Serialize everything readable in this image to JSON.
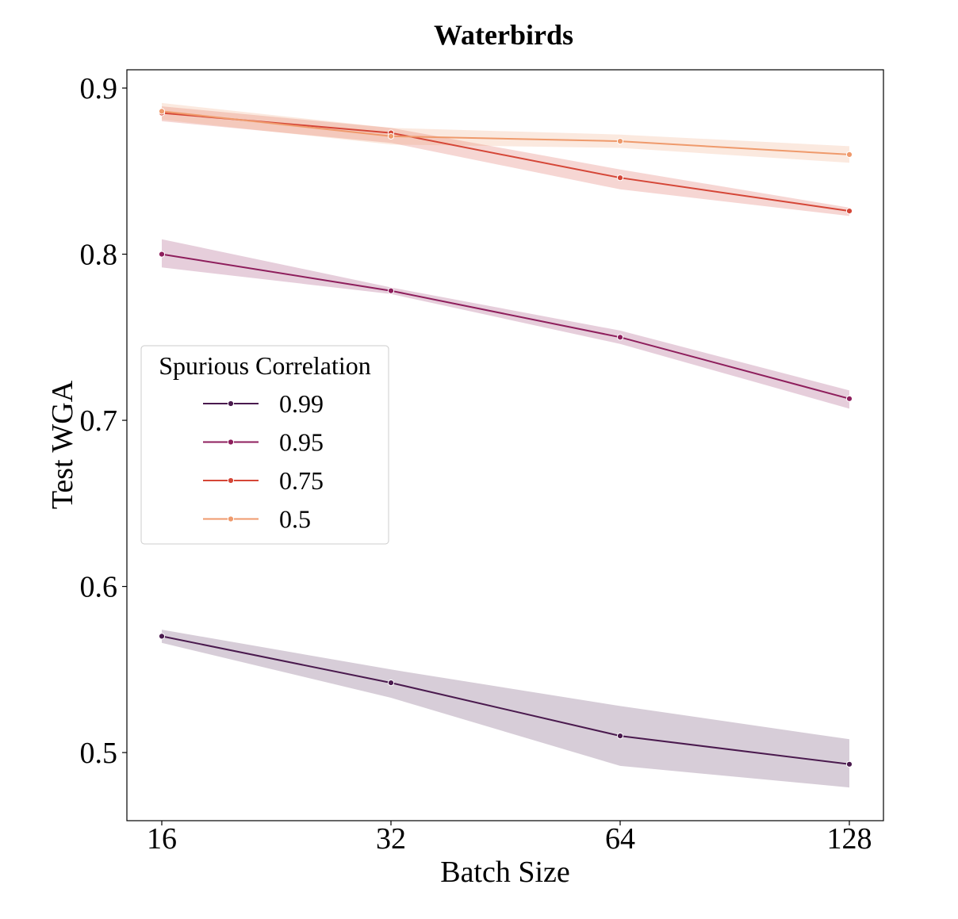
{
  "chart_data": {
    "type": "line",
    "title": "Waterbirds",
    "xlabel": "Batch Size",
    "ylabel": "Test WGA",
    "x": [
      16,
      32,
      64,
      128
    ],
    "x_scale": "log2",
    "x_ticks": [
      "16",
      "32",
      "64",
      "128"
    ],
    "y_ticks": [
      "0.5",
      "0.6",
      "0.7",
      "0.8",
      "0.9"
    ],
    "ylim": [
      0.459,
      0.911
    ],
    "grid": false,
    "legend": {
      "title": "Spurious Correlation",
      "placement": "center-left"
    },
    "series": [
      {
        "name": "0.99",
        "color": "#4a1a4e",
        "values": [
          0.57,
          0.542,
          0.51,
          0.493
        ],
        "ci_lower": [
          0.566,
          0.533,
          0.492,
          0.479
        ],
        "ci_upper": [
          0.574,
          0.55,
          0.528,
          0.508
        ]
      },
      {
        "name": "0.95",
        "color": "#8e1e5c",
        "values": [
          0.8,
          0.778,
          0.75,
          0.713
        ],
        "ci_lower": [
          0.792,
          0.776,
          0.746,
          0.707
        ],
        "ci_upper": [
          0.809,
          0.78,
          0.754,
          0.718
        ]
      },
      {
        "name": "0.75",
        "color": "#d54637",
        "values": [
          0.885,
          0.873,
          0.846,
          0.826
        ],
        "ci_lower": [
          0.88,
          0.867,
          0.839,
          0.823
        ],
        "ci_upper": [
          0.889,
          0.876,
          0.851,
          0.828
        ]
      },
      {
        "name": "0.5",
        "color": "#ef9a6c",
        "values": [
          0.886,
          0.871,
          0.868,
          0.86
        ],
        "ci_lower": [
          0.881,
          0.866,
          0.864,
          0.855
        ],
        "ci_upper": [
          0.891,
          0.876,
          0.872,
          0.865
        ]
      }
    ]
  }
}
